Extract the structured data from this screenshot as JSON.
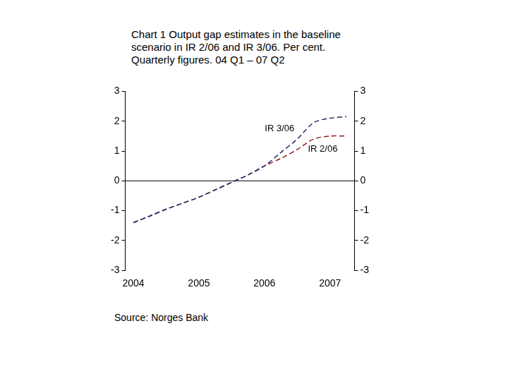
{
  "chart_data": {
    "type": "line",
    "title": "Chart 1 Output gap estimates in the baseline scenario in IR 2/06 and IR 3/06. Per cent. Quarterly figures. 04 Q1 – 07 Q2",
    "source": "Source: Norges Bank",
    "categories": [
      "2004",
      null,
      null,
      null,
      "2005",
      null,
      null,
      null,
      "2006",
      null,
      null,
      null,
      "2007",
      null
    ],
    "series": [
      {
        "name": "IR 3/06",
        "color": "#1f2a6e",
        "line_style": "dashed",
        "values": [
          -1.4,
          -1.18,
          -0.95,
          -0.75,
          -0.55,
          -0.3,
          -0.05,
          0.2,
          0.5,
          0.95,
          1.4,
          1.95,
          2.1,
          2.15
        ]
      },
      {
        "name": "IR 2/06",
        "color": "#8b1a1a",
        "line_style": "dashed",
        "values": [
          -1.4,
          -1.18,
          -0.95,
          -0.75,
          -0.55,
          -0.3,
          -0.05,
          0.2,
          0.5,
          0.75,
          1.05,
          1.4,
          1.5,
          1.5
        ]
      }
    ],
    "ylim": [
      -3,
      3
    ],
    "yticks": [
      -3,
      -2,
      -1,
      0,
      1,
      2,
      3
    ],
    "y2lim": [
      -3,
      3
    ],
    "y2ticks": [
      -3,
      -2,
      -1,
      0,
      1,
      2,
      3
    ],
    "grid": false
  }
}
